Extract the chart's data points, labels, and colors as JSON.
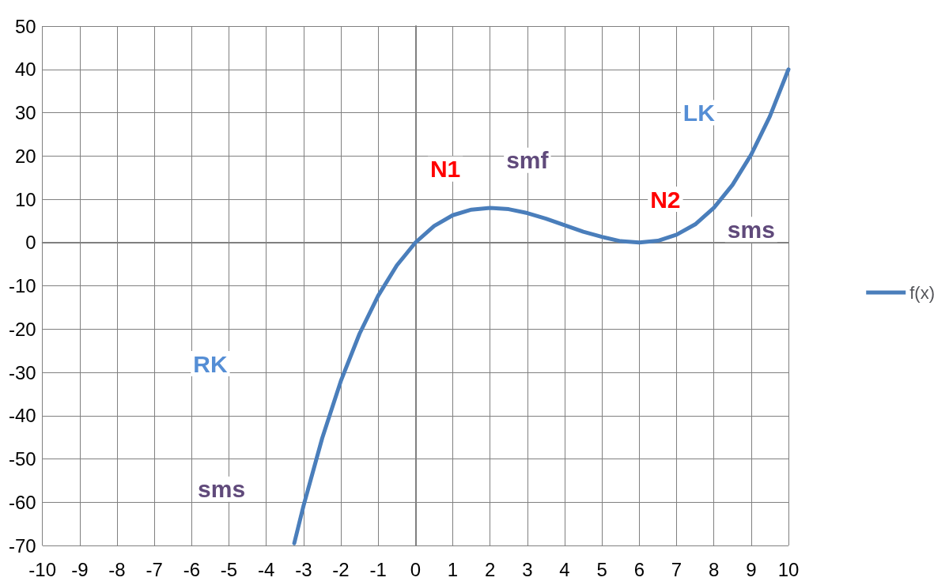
{
  "chart_data": {
    "type": "line",
    "x": [
      -3.25,
      -3,
      -2.5,
      -2,
      -1.5,
      -1,
      -0.5,
      0,
      0.5,
      1,
      1.5,
      2,
      2.5,
      3,
      3.5,
      4,
      4.5,
      5,
      5.5,
      6,
      6.5,
      7,
      7.5,
      8,
      8.5,
      9,
      9.5,
      10
    ],
    "series": [
      {
        "name": "f(x)",
        "color": "#4a7ebb",
        "values": [
          -69.5,
          -60.8,
          -45.2,
          -32,
          -21.1,
          -12.3,
          -5.3,
          0,
          3.8,
          6.3,
          7.6,
          8,
          7.7,
          6.8,
          5.5,
          4,
          2.5,
          1.3,
          0.3,
          0,
          0.4,
          1.8,
          4.2,
          8,
          13.3,
          20.3,
          29.1,
          40
        ]
      }
    ],
    "xlim": [
      -10,
      10
    ],
    "xticks": [
      -10,
      -9,
      -8,
      -7,
      -6,
      -5,
      -4,
      -3,
      -2,
      -1,
      0,
      1,
      2,
      3,
      4,
      5,
      6,
      7,
      8,
      9,
      10
    ],
    "ylim": [
      -70,
      50
    ],
    "yticks": [
      -70,
      -60,
      -50,
      -40,
      -30,
      -20,
      -10,
      0,
      10,
      20,
      30,
      40,
      50
    ],
    "grid": true,
    "legend": "right",
    "marker": "none",
    "line_style": "solid",
    "annotations": [
      "N1",
      "smf",
      "N2",
      "LK",
      "sms",
      "RK",
      "sms"
    ]
  }
}
